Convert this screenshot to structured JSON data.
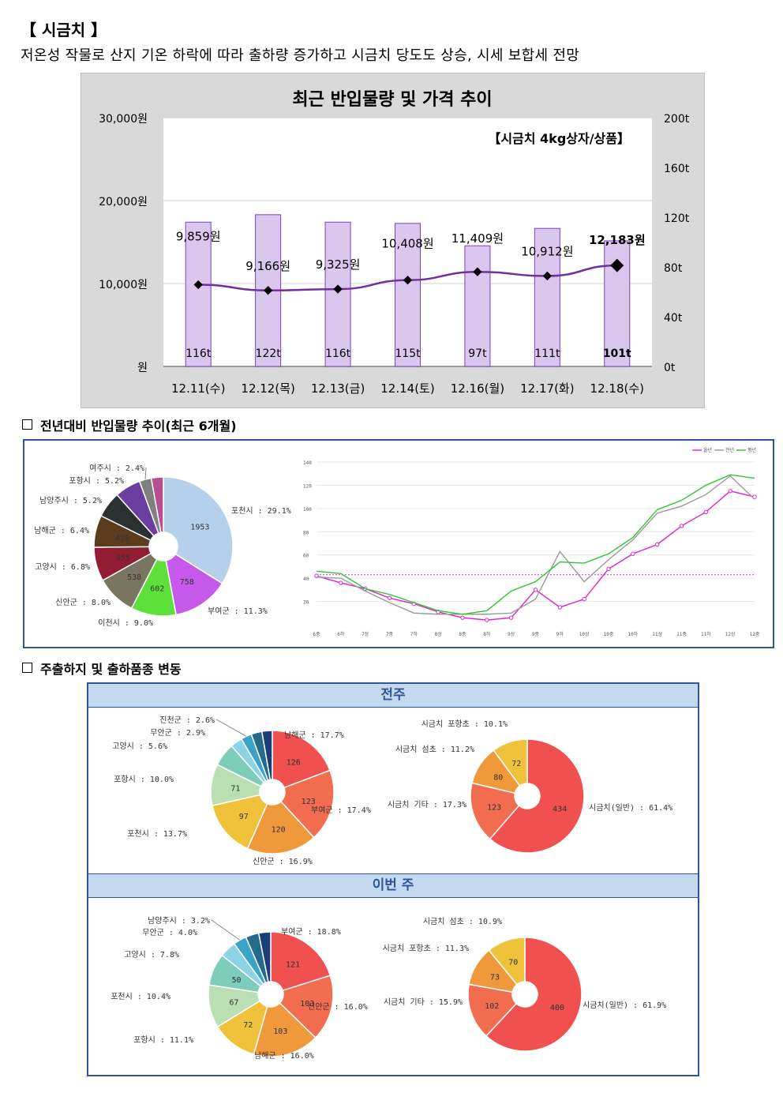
{
  "heading": {
    "title": "【 시금치 】",
    "subtitle": "저온성 작물로 산지 기온 하락에 따라 출하량 증가하고 시금치 당도도 상승, 시세 보합세 전망"
  },
  "section2": "전년대비 반입물량 추이(최근 6개월)",
  "section3": "주출하지 및 출하품종 변동",
  "panel3": {
    "prev_week": "전주",
    "this_week": "이번 주"
  },
  "colors": {
    "bar_fill": "#d9c7ee",
    "bar_stroke": "#7f3fbf",
    "price_line": "#7030a0",
    "frame": "#2f5597"
  },
  "chart_data": [
    {
      "type": "bar+line",
      "title": "최근 반입물량 및 가격 추이",
      "annotation": "【시금치 4kg상자/상품】",
      "categories": [
        "12.11(수)",
        "12.12(목)",
        "12.13(금)",
        "12.14(토)",
        "12.16(월)",
        "12.17(화)",
        "12.18(수)"
      ],
      "volume_t": [
        116,
        122,
        116,
        115,
        97,
        111,
        101
      ],
      "volume_labels": [
        "116t",
        "122t",
        "116t",
        "115t",
        "97t",
        "111t",
        "101t"
      ],
      "price_won": [
        9859,
        9166,
        9325,
        10408,
        11409,
        10912,
        12183
      ],
      "price_labels": [
        "9,859원",
        "9,166원",
        "9,325원",
        "10,408원",
        "11,409원",
        "10,912원",
        "12,183원"
      ],
      "left_axis": {
        "ticks": [
          "원",
          "10,000원",
          "20,000원",
          "30,000원"
        ],
        "range": [
          0,
          30000
        ]
      },
      "right_axis": {
        "ticks": [
          "0t",
          "40t",
          "80t",
          "120t",
          "160t",
          "200t"
        ],
        "range": [
          0,
          200
        ]
      }
    },
    {
      "type": "pie",
      "slices": [
        {
          "label": "포천시 : 29.1%",
          "value": 1953,
          "pct": 29.1,
          "color": "#b4d0ea"
        },
        {
          "label": "부여군 : 11.3%",
          "value": 758,
          "pct": 11.3,
          "color": "#c55aea"
        },
        {
          "label": "이천시 : 9.0%",
          "value": 602,
          "pct": 9.0,
          "color": "#5de03a"
        },
        {
          "label": "신안군 : 8.0%",
          "value": 538,
          "pct": 8.0,
          "color": "#7a7560"
        },
        {
          "label": "고양시 : 6.8%",
          "value": 455,
          "pct": 6.8,
          "color": "#921d32"
        },
        {
          "label": "남해군 : 6.4%",
          "value": 428,
          "pct": 6.4,
          "color": "#5b3c1c"
        },
        {
          "label": "남양주시 : 5.2%",
          "value": "",
          "pct": 5.2,
          "color": "#2b3130"
        },
        {
          "label": "포항시 : 5.2%",
          "value": "",
          "pct": 5.2,
          "color": "#6a3fa0"
        },
        {
          "label": "여주시 : 2.4%",
          "value": "",
          "pct": 2.4,
          "color": "#808080"
        },
        {
          "label": "",
          "value": "",
          "pct": 2.4,
          "color": "#b64f8e"
        }
      ]
    },
    {
      "type": "line",
      "legend": [
        "올년",
        "전년",
        "평년"
      ],
      "x": [
        "6중",
        "6하",
        "7상",
        "7중",
        "7하",
        "8상",
        "8중",
        "8하",
        "9상",
        "9중",
        "9하",
        "10상",
        "10중",
        "10하",
        "11상",
        "11중",
        "11하",
        "12상",
        "12중"
      ],
      "y_ticks": [
        20,
        40,
        60,
        80,
        100,
        120,
        140
      ],
      "ylim": [
        0,
        140
      ],
      "reference": 43,
      "series": [
        {
          "name": "올년",
          "color": "#e020d0",
          "values": [
            42,
            36,
            31,
            23,
            18,
            11,
            6,
            4,
            6,
            30,
            15,
            22,
            48,
            61,
            69,
            85,
            97,
            115,
            110
          ]
        },
        {
          "name": "전년",
          "color": "#9a9a9a",
          "values": [
            41,
            40,
            29,
            19,
            10,
            9,
            9,
            9,
            10,
            22,
            63,
            37,
            56,
            73,
            96,
            102,
            112,
            128,
            108
          ]
        },
        {
          "name": "평년",
          "color": "#2dc82d",
          "values": [
            46,
            44,
            31,
            26,
            19,
            12,
            9,
            12,
            29,
            37,
            54,
            53,
            61,
            75,
            99,
            107,
            120,
            129,
            126
          ]
        }
      ]
    },
    {
      "type": "pie",
      "group": "전주",
      "slices": [
        {
          "label": "남해군 : 17.7%",
          "value": 126,
          "pct": 17.7,
          "color": "#f05050"
        },
        {
          "label": "부여군 : 17.4%",
          "value": 123,
          "pct": 17.4,
          "color": "#f26d4f"
        },
        {
          "label": "신안군 : 16.9%",
          "value": 120,
          "pct": 16.9,
          "color": "#f0983c"
        },
        {
          "label": "포천시 : 13.7%",
          "value": 97,
          "pct": 13.7,
          "color": "#f0c23c"
        },
        {
          "label": "포항시 : 10.0%",
          "value": 71,
          "pct": 10.0,
          "color": "#b9dfb3"
        },
        {
          "label": "고양시 : 5.6%",
          "value": "",
          "pct": 5.6,
          "color": "#7dcdba"
        },
        {
          "label": "무안군 : 2.9%",
          "value": "",
          "pct": 2.9,
          "color": "#8cd3e6"
        },
        {
          "label": "진천군 : 2.6%",
          "value": "",
          "pct": 2.6,
          "color": "#3ba3c6"
        },
        {
          "label": "",
          "value": "",
          "pct": 2.6,
          "color": "#236a8c"
        },
        {
          "label": "",
          "value": "",
          "pct": 2.5,
          "color": "#1a3e78"
        }
      ]
    },
    {
      "type": "pie",
      "group": "전주",
      "slices": [
        {
          "label": "시금치(일반) : 61.4%",
          "value": 434,
          "pct": 61.4,
          "color": "#f05050"
        },
        {
          "label": "시금치 기타 : 17.3%",
          "value": 123,
          "pct": 17.3,
          "color": "#f26d4f"
        },
        {
          "label": "시금치 섬초 : 11.2%",
          "value": 80,
          "pct": 11.2,
          "color": "#f0983c"
        },
        {
          "label": "시금치 포항초 : 10.1%",
          "value": 72,
          "pct": 10.1,
          "color": "#f0c23c"
        }
      ]
    },
    {
      "type": "pie",
      "group": "이번 주",
      "slices": [
        {
          "label": "부여군 : 18.8%",
          "value": 121,
          "pct": 18.8,
          "color": "#f05050"
        },
        {
          "label": "신안군 : 16.0%",
          "value": 103,
          "pct": 16.0,
          "color": "#f26d4f"
        },
        {
          "label": "남해군 : 16.0%",
          "value": 103,
          "pct": 16.0,
          "color": "#f0983c"
        },
        {
          "label": "포항시 : 11.1%",
          "value": 72,
          "pct": 11.1,
          "color": "#f0c23c"
        },
        {
          "label": "포천시 : 10.4%",
          "value": 67,
          "pct": 10.4,
          "color": "#b9dfb3"
        },
        {
          "label": "고양시 : 7.8%",
          "value": 50,
          "pct": 7.8,
          "color": "#7dcdba"
        },
        {
          "label": "무안군 : 4.0%",
          "value": "",
          "pct": 4.0,
          "color": "#8cd3e6"
        },
        {
          "label": "남양주시 : 3.2%",
          "value": "",
          "pct": 3.2,
          "color": "#3ba3c6"
        },
        {
          "label": "",
          "value": "",
          "pct": 3.2,
          "color": "#236a8c"
        },
        {
          "label": "",
          "value": "",
          "pct": 2.9,
          "color": "#1a3e78"
        }
      ]
    },
    {
      "type": "pie",
      "group": "이번 주",
      "slices": [
        {
          "label": "시금치(일반) : 61.9%",
          "value": 400,
          "pct": 61.9,
          "color": "#f05050"
        },
        {
          "label": "시금치 기타 : 15.9%",
          "value": 102,
          "pct": 15.9,
          "color": "#f26d4f"
        },
        {
          "label": "시금치 포항초 : 11.3%",
          "value": 73,
          "pct": 11.3,
          "color": "#f0983c"
        },
        {
          "label": "시금치 섬초 : 10.9%",
          "value": 70,
          "pct": 10.9,
          "color": "#f0c23c"
        }
      ]
    }
  ]
}
